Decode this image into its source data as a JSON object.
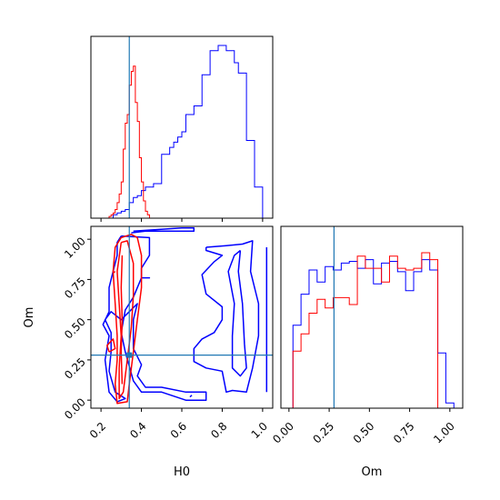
{
  "colors": {
    "series_a": "#0000ff",
    "series_b": "#ff0000",
    "truth": "#1f77b4",
    "axes": "#000000"
  },
  "chart_data": [
    {
      "type": "histogram",
      "panel": "top-left",
      "x_variable": "H0",
      "xlim": [
        0.15,
        1.05
      ],
      "x_ticks": [
        0.2,
        0.4,
        0.6,
        0.8,
        1.0
      ],
      "show_tick_labels": false,
      "truth_x": 0.34,
      "series": [
        {
          "color": "blue",
          "bins": [
            [
              0.27,
              0.02
            ],
            [
              0.29,
              0.03
            ],
            [
              0.31,
              0.04
            ],
            [
              0.33,
              0.05
            ],
            [
              0.35,
              0.09
            ],
            [
              0.37,
              0.12
            ],
            [
              0.39,
              0.13
            ],
            [
              0.41,
              0.16
            ],
            [
              0.43,
              0.18
            ],
            [
              0.45,
              0.18
            ],
            [
              0.47,
              0.2
            ],
            [
              0.49,
              0.2
            ],
            [
              0.51,
              0.37
            ],
            [
              0.53,
              0.37
            ],
            [
              0.55,
              0.41
            ],
            [
              0.57,
              0.44
            ],
            [
              0.59,
              0.47
            ],
            [
              0.61,
              0.5
            ],
            [
              0.63,
              0.6
            ],
            [
              0.65,
              0.6
            ],
            [
              0.67,
              0.65
            ],
            [
              0.69,
              0.65
            ],
            [
              0.71,
              0.83
            ],
            [
              0.73,
              0.83
            ],
            [
              0.75,
              0.97
            ],
            [
              0.77,
              0.97
            ],
            [
              0.79,
              1.0
            ],
            [
              0.81,
              1.0
            ],
            [
              0.83,
              0.97
            ],
            [
              0.85,
              0.97
            ],
            [
              0.87,
              0.9
            ],
            [
              0.89,
              0.84
            ],
            [
              0.91,
              0.84
            ],
            [
              0.93,
              0.45
            ],
            [
              0.95,
              0.45
            ],
            [
              0.97,
              0.18
            ],
            [
              0.99,
              0.18
            ]
          ]
        },
        {
          "color": "red",
          "bins": [
            [
              0.245,
              0.01
            ],
            [
              0.255,
              0.02
            ],
            [
              0.265,
              0.03
            ],
            [
              0.275,
              0.05
            ],
            [
              0.285,
              0.09
            ],
            [
              0.295,
              0.14
            ],
            [
              0.305,
              0.21
            ],
            [
              0.315,
              0.4
            ],
            [
              0.325,
              0.55
            ],
            [
              0.335,
              0.6
            ],
            [
              0.345,
              0.77
            ],
            [
              0.355,
              0.85
            ],
            [
              0.365,
              0.88
            ],
            [
              0.375,
              0.67
            ],
            [
              0.385,
              0.56
            ],
            [
              0.395,
              0.35
            ],
            [
              0.405,
              0.21
            ],
            [
              0.415,
              0.1
            ],
            [
              0.425,
              0.04
            ],
            [
              0.435,
              0.02
            ]
          ]
        }
      ]
    },
    {
      "type": "contour",
      "panel": "bottom-left",
      "x_variable": "H0",
      "y_variable": "Om",
      "xlabel": "H0",
      "ylabel": "Om",
      "xlim": [
        0.15,
        1.05
      ],
      "ylim": [
        -0.05,
        1.08
      ],
      "x_ticks": [
        "0.2",
        "0.4",
        "0.6",
        "0.8",
        "1.0"
      ],
      "y_ticks": [
        "0.00",
        "0.25",
        "0.50",
        "0.75",
        "1.00"
      ],
      "truth": [
        0.34,
        0.28
      ],
      "series": [
        {
          "color": "blue",
          "contours": [
            [
              [
                0.35,
                1.04
              ],
              [
                0.42,
                1.05
              ],
              [
                0.55,
                1.05
              ],
              [
                0.66,
                1.05
              ],
              [
                0.66,
                1.07
              ],
              [
                0.6,
                1.07
              ],
              [
                0.48,
                1.06
              ],
              [
                0.36,
                1.05
              ]
            ],
            [
              [
                0.3,
                1.02
              ],
              [
                0.44,
                1.01
              ],
              [
                0.44,
                0.9
              ],
              [
                0.4,
                0.82
              ],
              [
                0.4,
                0.76
              ],
              [
                0.44,
                0.76
              ],
              [
                0.4,
                0.76
              ],
              [
                0.36,
                0.64
              ],
              [
                0.32,
                0.56
              ],
              [
                0.3,
                0.42
              ],
              [
                0.32,
                0.3
              ],
              [
                0.36,
                0.12
              ],
              [
                0.4,
                0.05
              ],
              [
                0.5,
                0.05
              ],
              [
                0.62,
                0.0
              ],
              [
                0.72,
                0.0
              ],
              [
                0.72,
                0.05
              ],
              [
                0.62,
                0.05
              ],
              [
                0.5,
                0.08
              ],
              [
                0.42,
                0.08
              ],
              [
                0.38,
                0.15
              ],
              [
                0.4,
                0.22
              ],
              [
                0.36,
                0.32
              ],
              [
                0.36,
                0.5
              ],
              [
                0.38,
                0.6
              ],
              [
                0.3,
                0.5
              ],
              [
                0.25,
                0.55
              ],
              [
                0.22,
                0.5
              ],
              [
                0.25,
                0.42
              ],
              [
                0.25,
                0.3
              ],
              [
                0.24,
                0.18
              ],
              [
                0.27,
                0.05
              ],
              [
                0.32,
                0.01
              ],
              [
                0.28,
                -0.01
              ],
              [
                0.24,
                0.05
              ],
              [
                0.22,
                0.25
              ],
              [
                0.24,
                0.4
              ],
              [
                0.21,
                0.47
              ],
              [
                0.24,
                0.55
              ],
              [
                0.24,
                0.7
              ],
              [
                0.26,
                0.8
              ],
              [
                0.28,
                0.9
              ],
              [
                0.28,
                0.98
              ],
              [
                0.3,
                1.02
              ]
            ],
            [
              [
                0.72,
                0.95
              ],
              [
                0.82,
                0.96
              ],
              [
                0.9,
                0.97
              ],
              [
                0.95,
                0.99
              ],
              [
                0.94,
                0.8
              ],
              [
                0.98,
                0.6
              ],
              [
                0.98,
                0.4
              ],
              [
                0.95,
                0.2
              ],
              [
                0.92,
                0.05
              ],
              [
                0.85,
                0.06
              ],
              [
                0.82,
                0.05
              ],
              [
                0.8,
                0.18
              ],
              [
                0.72,
                0.2
              ],
              [
                0.66,
                0.24
              ],
              [
                0.66,
                0.32
              ],
              [
                0.7,
                0.38
              ],
              [
                0.76,
                0.42
              ],
              [
                0.8,
                0.5
              ],
              [
                0.8,
                0.58
              ],
              [
                0.72,
                0.66
              ],
              [
                0.7,
                0.78
              ],
              [
                0.76,
                0.86
              ],
              [
                0.8,
                0.9
              ],
              [
                0.72,
                0.93
              ],
              [
                0.72,
                0.95
              ]
            ],
            [
              [
                0.89,
                0.93
              ],
              [
                0.88,
                0.8
              ],
              [
                0.9,
                0.6
              ],
              [
                0.91,
                0.35
              ],
              [
                0.92,
                0.2
              ],
              [
                0.89,
                0.15
              ],
              [
                0.85,
                0.2
              ],
              [
                0.85,
                0.4
              ],
              [
                0.86,
                0.6
              ],
              [
                0.83,
                0.8
              ],
              [
                0.86,
                0.9
              ],
              [
                0.89,
                0.93
              ]
            ],
            [
              [
                1.02,
                0.95
              ],
              [
                1.02,
                0.4
              ],
              [
                1.02,
                0.05
              ]
            ],
            [
              [
                0.64,
                0.02
              ],
              [
                0.65,
                0.03
              ]
            ]
          ]
        },
        {
          "color": "red",
          "contours": [
            [
              [
                0.3,
                1.01
              ],
              [
                0.35,
                1.03
              ],
              [
                0.38,
                1.01
              ],
              [
                0.4,
                0.9
              ],
              [
                0.4,
                0.7
              ],
              [
                0.38,
                0.5
              ],
              [
                0.36,
                0.3
              ],
              [
                0.34,
                0.1
              ],
              [
                0.33,
                -0.01
              ],
              [
                0.28,
                -0.02
              ],
              [
                0.27,
                0.1
              ],
              [
                0.28,
                0.25
              ],
              [
                0.28,
                0.4
              ],
              [
                0.27,
                0.6
              ],
              [
                0.26,
                0.8
              ],
              [
                0.27,
                0.95
              ],
              [
                0.3,
                1.01
              ]
            ],
            [
              [
                0.3,
                0.98
              ],
              [
                0.33,
                0.99
              ],
              [
                0.36,
                0.85
              ],
              [
                0.36,
                0.65
              ],
              [
                0.35,
                0.45
              ],
              [
                0.33,
                0.25
              ],
              [
                0.31,
                0.05
              ],
              [
                0.29,
                0.01
              ],
              [
                0.29,
                0.2
              ],
              [
                0.3,
                0.4
              ],
              [
                0.29,
                0.6
              ],
              [
                0.28,
                0.8
              ],
              [
                0.3,
                0.98
              ]
            ],
            [
              [
                0.24,
                0.3
              ],
              [
                0.23,
                0.34
              ],
              [
                0.26,
                0.38
              ],
              [
                0.27,
                0.32
              ],
              [
                0.24,
                0.3
              ]
            ],
            [
              [
                0.26,
                0.79
              ],
              [
                0.27,
                0.8
              ]
            ],
            [
              [
                0.305,
                0.1
              ],
              [
                0.3,
                0.3
              ],
              [
                0.305,
                0.5
              ],
              [
                0.3,
                0.7
              ],
              [
                0.305,
                0.9
              ]
            ]
          ]
        }
      ]
    },
    {
      "type": "histogram",
      "panel": "bottom-right",
      "x_variable": "Om",
      "xlabel": "Om",
      "xlim": [
        -0.05,
        1.08
      ],
      "x_ticks": [
        "0.00",
        "0.25",
        "0.50",
        "0.75",
        "1.00"
      ],
      "truth_x": 0.28,
      "series": [
        {
          "color": "blue",
          "bins": [
            [
              0.0,
              0.0
            ],
            [
              0.05,
              0.48
            ],
            [
              0.1,
              0.66
            ],
            [
              0.15,
              0.8
            ],
            [
              0.2,
              0.73
            ],
            [
              0.25,
              0.82
            ],
            [
              0.3,
              0.8
            ],
            [
              0.35,
              0.84
            ],
            [
              0.4,
              0.85
            ],
            [
              0.45,
              0.81
            ],
            [
              0.5,
              0.86
            ],
            [
              0.55,
              0.72
            ],
            [
              0.6,
              0.84
            ],
            [
              0.65,
              0.85
            ],
            [
              0.7,
              0.79
            ],
            [
              0.75,
              0.68
            ],
            [
              0.8,
              0.79
            ],
            [
              0.85,
              0.86
            ],
            [
              0.9,
              0.8
            ],
            [
              0.95,
              0.32
            ],
            [
              1.0,
              0.03
            ]
          ]
        },
        {
          "color": "red",
          "bins": [
            [
              0.05,
              0.33
            ],
            [
              0.1,
              0.43
            ],
            [
              0.15,
              0.55
            ],
            [
              0.2,
              0.63
            ],
            [
              0.25,
              0.58
            ],
            [
              0.3,
              0.64
            ],
            [
              0.35,
              0.64
            ],
            [
              0.4,
              0.6
            ],
            [
              0.45,
              0.88
            ],
            [
              0.5,
              0.81
            ],
            [
              0.55,
              0.81
            ],
            [
              0.6,
              0.73
            ],
            [
              0.65,
              0.88
            ],
            [
              0.7,
              0.81
            ],
            [
              0.75,
              0.8
            ],
            [
              0.8,
              0.81
            ],
            [
              0.85,
              0.9
            ],
            [
              0.9,
              0.86
            ],
            [
              0.95,
              0.0
            ]
          ]
        }
      ]
    }
  ]
}
